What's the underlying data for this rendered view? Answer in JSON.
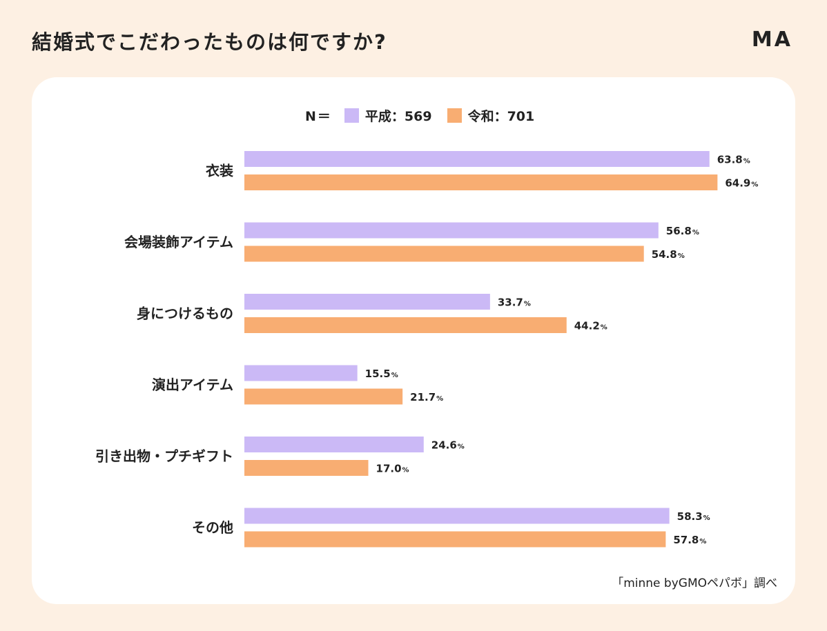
{
  "header": {
    "title": "結婚式でこだわったものは何ですか?",
    "logo": "MA"
  },
  "legend": {
    "n_label": "N＝",
    "items": [
      {
        "label": "平成：569",
        "color": "#cbb9f6"
      },
      {
        "label": "令和：701",
        "color": "#f8ad72"
      }
    ]
  },
  "source": "「minne byGMOペパボ」調べ",
  "chart_data": {
    "type": "bar",
    "orientation": "horizontal",
    "title": "結婚式でこだわったものは何ですか?",
    "xlabel": "",
    "ylabel": "",
    "xlim": [
      0,
      100
    ],
    "unit": "%",
    "categories": [
      "衣装",
      "会場装飾アイテム",
      "身につけるもの",
      "演出アイテム",
      "引き出物・プチギフト",
      "その他"
    ],
    "series": [
      {
        "name": "平成：569",
        "color": "#cbb9f6",
        "values": [
          63.8,
          56.8,
          33.7,
          15.5,
          24.6,
          58.3
        ]
      },
      {
        "name": "令和：701",
        "color": "#f8ad72",
        "values": [
          64.9,
          54.8,
          44.2,
          21.7,
          17.0,
          57.8
        ]
      }
    ]
  }
}
